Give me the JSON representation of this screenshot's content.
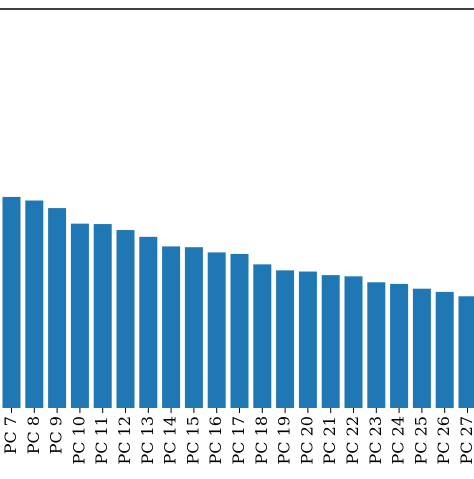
{
  "chart_data": {
    "type": "bar",
    "title": "",
    "xlabel": "",
    "ylabel": "",
    "ylim": [
      0,
      0.1
    ],
    "grid": false,
    "categories": [
      "PC 7",
      "PC 8",
      "PC 9",
      "PC 10",
      "PC 11",
      "PC 12",
      "PC 13",
      "PC 14",
      "PC 15",
      "PC 16",
      "PC 17",
      "PC 18",
      "PC 19",
      "PC 20",
      "PC 21",
      "PC 22",
      "PC 23",
      "PC 24",
      "PC 25",
      "PC 26",
      "PC 27"
    ],
    "values": [
      0.0529,
      0.052,
      0.0501,
      0.0462,
      0.0461,
      0.0446,
      0.0429,
      0.0405,
      0.0403,
      0.039,
      0.0386,
      0.036,
      0.0345,
      0.0342,
      0.0333,
      0.033,
      0.0315,
      0.0311,
      0.0299,
      0.0291,
      0.028
    ],
    "colors": {
      "bar": "#1f77b4",
      "axis": "#000000"
    }
  }
}
